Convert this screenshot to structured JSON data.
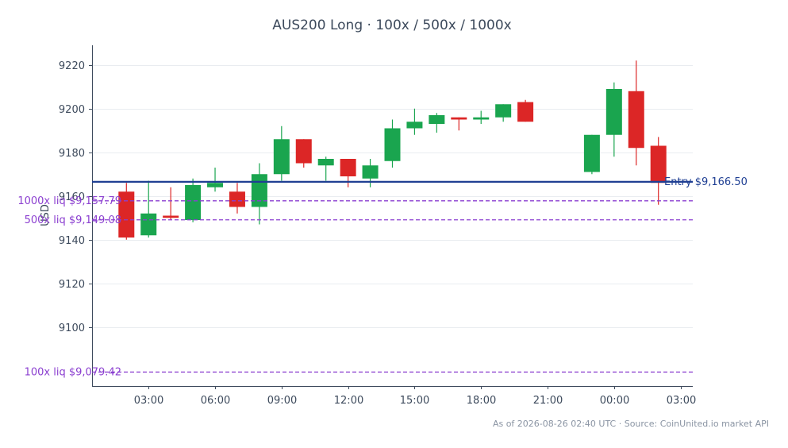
{
  "chart_data": {
    "type": "candlestick",
    "title": "AUS200 Long · 100x / 500x / 1000x",
    "xlabel": "",
    "ylabel": "USD",
    "ylim": [
      9073,
      9229
    ],
    "grid": true,
    "yticks": [
      9100,
      9120,
      9140,
      9160,
      9180,
      9200,
      9220
    ],
    "ytick_labels": [
      "9100",
      "9120",
      "9140",
      "9160",
      "9180",
      "9200",
      "9220"
    ],
    "xticks_hours": [
      3,
      6,
      9,
      12,
      15,
      18,
      21,
      24,
      27
    ],
    "xtick_labels": [
      "03:00",
      "06:00",
      "09:00",
      "12:00",
      "15:00",
      "18:00",
      "21:00",
      "00:00",
      "03:00"
    ],
    "xlim_hours": [
      0.45,
      27.55
    ],
    "up_color": "#1aa54f",
    "down_color": "#dc2626",
    "candles": [
      {
        "t": 2,
        "o": 9162,
        "h": 9166,
        "l": 9140,
        "c": 9141
      },
      {
        "t": 3,
        "o": 9142,
        "h": 9167,
        "l": 9141,
        "c": 9152
      },
      {
        "t": 4,
        "o": 9151,
        "h": 9164,
        "l": 9149,
        "c": 9150
      },
      {
        "t": 5,
        "o": 9149,
        "h": 9168,
        "l": 9148,
        "c": 9165
      },
      {
        "t": 6,
        "o": 9164,
        "h": 9173,
        "l": 9162,
        "c": 9166
      },
      {
        "t": 7,
        "o": 9162,
        "h": 9166,
        "l": 9152,
        "c": 9155
      },
      {
        "t": 8,
        "o": 9155,
        "h": 9175,
        "l": 9147,
        "c": 9170
      },
      {
        "t": 9,
        "o": 9170,
        "h": 9192,
        "l": 9167,
        "c": 9186
      },
      {
        "t": 10,
        "o": 9186,
        "h": 9186,
        "l": 9173,
        "c": 9175
      },
      {
        "t": 11,
        "o": 9174,
        "h": 9178,
        "l": 9167,
        "c": 9177
      },
      {
        "t": 12,
        "o": 9177,
        "h": 9177,
        "l": 9164,
        "c": 9169
      },
      {
        "t": 13,
        "o": 9168,
        "h": 9177,
        "l": 9164,
        "c": 9174
      },
      {
        "t": 14,
        "o": 9176,
        "h": 9195,
        "l": 9173,
        "c": 9191
      },
      {
        "t": 15,
        "o": 9191,
        "h": 9200,
        "l": 9188,
        "c": 9194
      },
      {
        "t": 16,
        "o": 9193,
        "h": 9198,
        "l": 9189,
        "c": 9197
      },
      {
        "t": 17,
        "o": 9196,
        "h": 9196,
        "l": 9190,
        "c": 9195
      },
      {
        "t": 18,
        "o": 9195,
        "h": 9199,
        "l": 9193,
        "c": 9196
      },
      {
        "t": 19,
        "o": 9196,
        "h": 9202,
        "l": 9194,
        "c": 9202
      },
      {
        "t": 20,
        "o": 9203,
        "h": 9204,
        "l": 9194,
        "c": 9194
      },
      {
        "t": 23,
        "o": 9171,
        "h": 9188,
        "l": 9170,
        "c": 9188
      },
      {
        "t": 24,
        "o": 9188,
        "h": 9212,
        "l": 9178,
        "c": 9209
      },
      {
        "t": 25,
        "o": 9208,
        "h": 9222,
        "l": 9174,
        "c": 9182
      },
      {
        "t": 26,
        "o": 9183,
        "h": 9187,
        "l": 9156,
        "c": 9166
      }
    ],
    "reference_lines": [
      {
        "name": "entry",
        "value": 9166.5,
        "label": "Entry $9,166.50",
        "color": "#1f3f93",
        "style": "solid"
      },
      {
        "name": "liq-1000x",
        "value": 9157.79,
        "label": "1000x liq $9,157.79",
        "color": "#8b3fd0",
        "style": "dashed"
      },
      {
        "name": "liq-500x",
        "value": 9149.08,
        "label": "500x liq $9,149.08",
        "color": "#8b3fd0",
        "style": "dashed"
      },
      {
        "name": "liq-100x",
        "value": 9079.42,
        "label": "100x liq $9,079.42",
        "color": "#8b3fd0",
        "style": "dashed"
      }
    ]
  },
  "footer": {
    "text": "As of 2026-08-26 02:40 UTC · Source: CoinUnited.io market API"
  }
}
